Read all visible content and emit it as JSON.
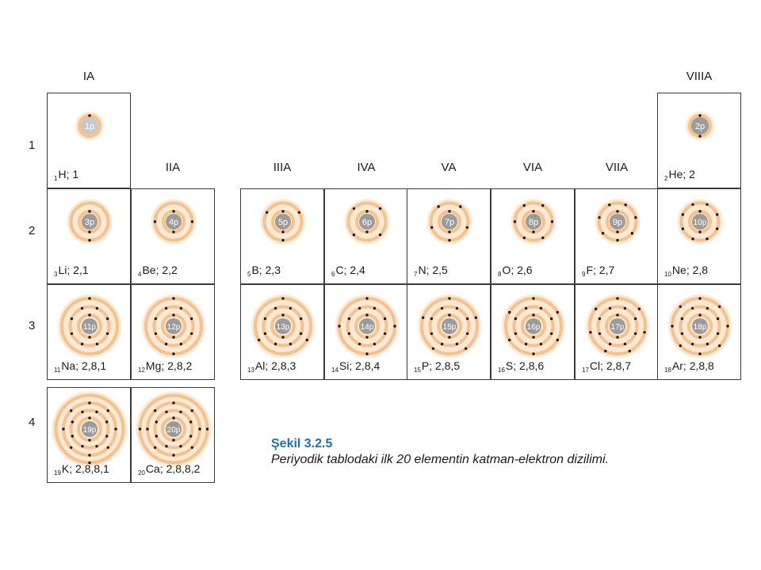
{
  "groups": [
    {
      "id": "IA",
      "label": "IA"
    },
    {
      "id": "IIA",
      "label": "IIA"
    },
    {
      "id": "IIIA",
      "label": "IIIA"
    },
    {
      "id": "IVA",
      "label": "IVA"
    },
    {
      "id": "VA",
      "label": "VA"
    },
    {
      "id": "VIA",
      "label": "VIA"
    },
    {
      "id": "VIIA",
      "label": "VIIA"
    },
    {
      "id": "VIIIA",
      "label": "VIIIA"
    }
  ],
  "periods": [
    "1",
    "2",
    "3",
    "4"
  ],
  "elements": [
    {
      "z": 1,
      "symbol": "H",
      "config": "1",
      "nucleus": "1p",
      "shells": [
        1
      ],
      "col": 1,
      "row": 1
    },
    {
      "z": 2,
      "symbol": "He",
      "config": "2",
      "nucleus": "2p",
      "shells": [
        2
      ],
      "col": 8,
      "row": 1
    },
    {
      "z": 3,
      "symbol": "Li",
      "config": "2,1",
      "nucleus": "3p",
      "shells": [
        2,
        1
      ],
      "col": 1,
      "row": 2
    },
    {
      "z": 4,
      "symbol": "Be",
      "config": "2,2",
      "nucleus": "4p",
      "shells": [
        2,
        2
      ],
      "col": 2,
      "row": 2
    },
    {
      "z": 5,
      "symbol": "B",
      "config": "2,3",
      "nucleus": "5p",
      "shells": [
        2,
        3
      ],
      "col": 3,
      "row": 2
    },
    {
      "z": 6,
      "symbol": "C",
      "config": "2,4",
      "nucleus": "6p",
      "shells": [
        2,
        4
      ],
      "col": 4,
      "row": 2
    },
    {
      "z": 7,
      "symbol": "N",
      "config": "2,5",
      "nucleus": "7p",
      "shells": [
        2,
        5
      ],
      "col": 5,
      "row": 2
    },
    {
      "z": 8,
      "symbol": "O",
      "config": "2,6",
      "nucleus": "8p",
      "shells": [
        2,
        6
      ],
      "col": 6,
      "row": 2
    },
    {
      "z": 9,
      "symbol": "F",
      "config": "2,7",
      "nucleus": "9p",
      "shells": [
        2,
        7
      ],
      "col": 7,
      "row": 2
    },
    {
      "z": 10,
      "symbol": "Ne",
      "config": "2,8",
      "nucleus": "10p",
      "shells": [
        2,
        8
      ],
      "col": 8,
      "row": 2
    },
    {
      "z": 11,
      "symbol": "Na",
      "config": "2,8,1",
      "nucleus": "11p",
      "shells": [
        2,
        8,
        1
      ],
      "col": 1,
      "row": 3
    },
    {
      "z": 12,
      "symbol": "Mg",
      "config": "2,8,2",
      "nucleus": "12p",
      "shells": [
        2,
        8,
        2
      ],
      "col": 2,
      "row": 3
    },
    {
      "z": 13,
      "symbol": "Al",
      "config": "2,8,3",
      "nucleus": "13p",
      "shells": [
        2,
        8,
        3
      ],
      "col": 3,
      "row": 3
    },
    {
      "z": 14,
      "symbol": "Si",
      "config": "2,8,4",
      "nucleus": "14p",
      "shells": [
        2,
        8,
        4
      ],
      "col": 4,
      "row": 3
    },
    {
      "z": 15,
      "symbol": "P",
      "config": "2,8,5",
      "nucleus": "15p",
      "shells": [
        2,
        8,
        5
      ],
      "col": 5,
      "row": 3
    },
    {
      "z": 16,
      "symbol": "S",
      "config": "2,8,6",
      "nucleus": "16p",
      "shells": [
        2,
        8,
        6
      ],
      "col": 6,
      "row": 3
    },
    {
      "z": 17,
      "symbol": "Cl",
      "config": "2,8,7",
      "nucleus": "17p",
      "shells": [
        2,
        8,
        7
      ],
      "col": 7,
      "row": 3
    },
    {
      "z": 18,
      "symbol": "Ar",
      "config": "2,8,8",
      "nucleus": "18p",
      "shells": [
        2,
        8,
        8
      ],
      "col": 8,
      "row": 3
    },
    {
      "z": 19,
      "symbol": "K",
      "config": "2,8,8,1",
      "nucleus": "19p",
      "shells": [
        2,
        8,
        8,
        1
      ],
      "col": 1,
      "row": 4
    },
    {
      "z": 20,
      "symbol": "Ca",
      "config": "2,8,8,2",
      "nucleus": "20p",
      "shells": [
        2,
        8,
        8,
        2
      ],
      "col": 2,
      "row": 4
    }
  ],
  "caption": {
    "title": "Şekil 3.2.5",
    "text": "Periyodik tablodaki ilk 20 elementin katman-elektron dizilimi."
  },
  "colors": {
    "orbit": "#f5c28e",
    "nucleus_small": "#c8c8c8",
    "nucleus_large": "#9b9b9b",
    "electron": "#1a1a1a",
    "caption_title": "#1f6fb4"
  }
}
